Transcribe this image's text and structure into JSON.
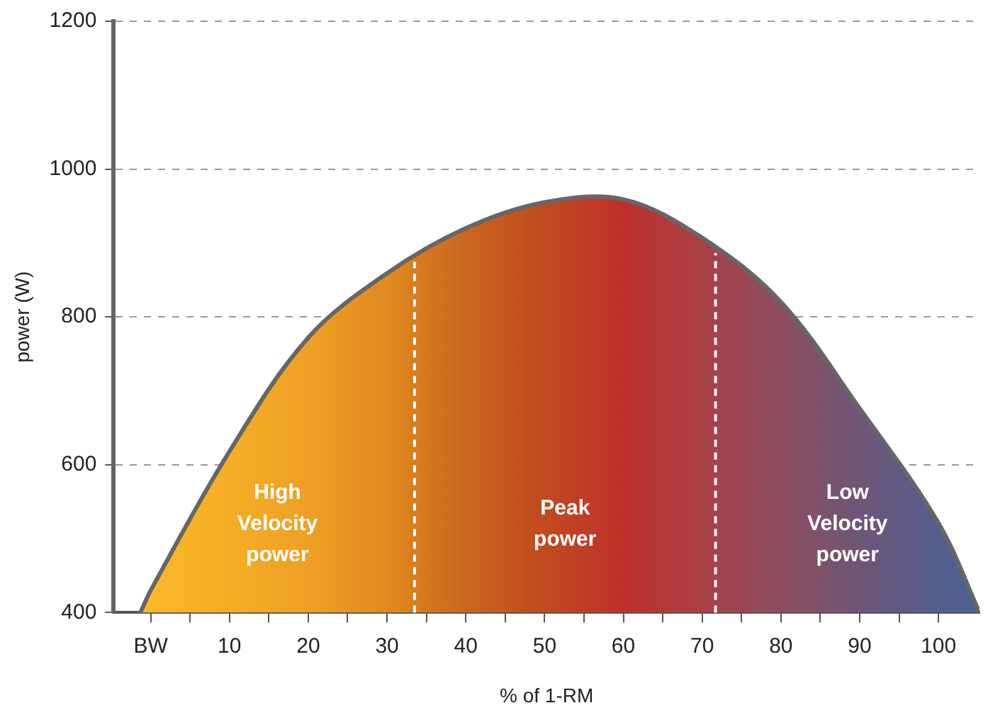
{
  "chart_data": {
    "type": "area",
    "xlabel": "% of 1-RM",
    "ylabel": "power (W)",
    "x": [
      -1.3,
      0,
      10,
      20,
      30,
      40,
      50,
      60,
      70,
      80,
      90,
      100,
      105.2
    ],
    "series": [
      {
        "color": "#666666",
        "colors": [
          "#fbb829",
          "#fbb829",
          "#f5ad26",
          "#eea024",
          "#e08a20",
          "#c9661e",
          "#c04a1f",
          "#c0302a",
          "#a84048",
          "#8c4d5e",
          "#6e5676",
          "#535e8e",
          "#4e5f94"
        ],
        "values": [
          400,
          430,
          618,
          772,
          859,
          920,
          955,
          959,
          907,
          820,
          676,
          521,
          400
        ]
      }
    ],
    "xlim": [
      -4.7,
      105.2
    ],
    "xticks": [
      {
        "value": 0,
        "label": "BW"
      },
      {
        "value": 5,
        "label": null
      },
      10,
      {
        "value": 15,
        "label": null
      },
      20,
      {
        "value": 25,
        "label": null
      },
      30,
      {
        "value": 35,
        "label": null
      },
      40,
      {
        "value": 45,
        "label": null
      },
      50,
      {
        "value": 55,
        "label": null
      },
      60,
      {
        "value": 65,
        "label": null
      },
      70,
      {
        "value": 75,
        "label": null
      },
      80,
      {
        "value": 85,
        "label": null
      },
      90,
      {
        "value": 95,
        "label": null
      },
      100
    ],
    "ylim": [
      400,
      1200
    ],
    "yticks": [
      400,
      600,
      800,
      1000,
      1200
    ],
    "grid": "y",
    "legend": false,
    "ref_lines": [
      {
        "axis": "x",
        "value": 33.5,
        "color": "#ffffff",
        "line_style": "dashed"
      },
      {
        "axis": "x",
        "value": 71.7,
        "color": "#ffffff",
        "line_style": "dashed"
      }
    ],
    "annotations": [
      "High\nVelocity\npower",
      "Peak\npower",
      "Low\nVelocity\npower"
    ]
  }
}
